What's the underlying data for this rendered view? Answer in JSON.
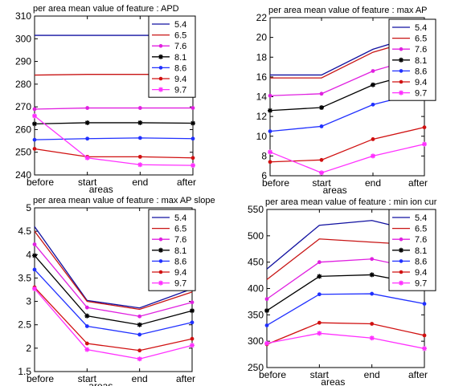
{
  "chart_data": [
    {
      "type": "line",
      "title": "per area mean value of feature : APD",
      "xlabel": "areas",
      "ylabel": "",
      "categories": [
        "before",
        "start",
        "end",
        "after"
      ],
      "ylim": [
        240,
        310
      ],
      "yticks": [
        240,
        250,
        260,
        270,
        280,
        290,
        300,
        310
      ],
      "legend_position": "top-right",
      "series": [
        {
          "name": "5.4",
          "color": "#1010a0",
          "marker": "none",
          "values": [
            301.5,
            301.5,
            301.5,
            301.5
          ]
        },
        {
          "name": "6.5",
          "color": "#c81414",
          "marker": "none",
          "values": [
            284,
            284.3,
            284.3,
            284.3
          ]
        },
        {
          "name": "7.6",
          "color": "#e020e0",
          "marker": "dot",
          "values": [
            269,
            269.5,
            269.5,
            269.5
          ]
        },
        {
          "name": "8.1",
          "color": "#000000",
          "marker": "star",
          "values": [
            262.5,
            263,
            263,
            262.8
          ]
        },
        {
          "name": "8.6",
          "color": "#2030ff",
          "marker": "dot",
          "values": [
            255.5,
            256,
            256.3,
            256
          ]
        },
        {
          "name": "9.4",
          "color": "#d01010",
          "marker": "dot",
          "values": [
            251.5,
            248,
            248,
            247.5
          ]
        },
        {
          "name": "9.7",
          "color": "#ff30ff",
          "marker": "star",
          "values": [
            266,
            247.5,
            244.5,
            244.2
          ]
        }
      ]
    },
    {
      "type": "line",
      "title": "per area mean value of feature : max AP",
      "xlabel": "areas",
      "ylabel": "",
      "categories": [
        "before",
        "start",
        "end",
        "after"
      ],
      "ylim": [
        6,
        22
      ],
      "yticks": [
        6,
        8,
        10,
        12,
        14,
        16,
        18,
        20,
        22
      ],
      "legend_position": "top-right",
      "series": [
        {
          "name": "5.4",
          "color": "#1010a0",
          "marker": "none",
          "values": [
            16.2,
            16.2,
            18.8,
            20.4
          ]
        },
        {
          "name": "6.5",
          "color": "#c81414",
          "marker": "none",
          "values": [
            15.9,
            15.9,
            18.5,
            20.0
          ]
        },
        {
          "name": "7.6",
          "color": "#e020e0",
          "marker": "dot",
          "values": [
            14.1,
            14.3,
            16.6,
            18.1
          ]
        },
        {
          "name": "8.1",
          "color": "#000000",
          "marker": "star",
          "values": [
            12.6,
            12.9,
            15.2,
            16.6
          ]
        },
        {
          "name": "8.6",
          "color": "#2030ff",
          "marker": "dot",
          "values": [
            10.5,
            11.0,
            13.2,
            14.5
          ]
        },
        {
          "name": "9.4",
          "color": "#d01010",
          "marker": "dot",
          "values": [
            7.4,
            7.6,
            9.7,
            10.9
          ]
        },
        {
          "name": "9.7",
          "color": "#ff30ff",
          "marker": "star",
          "values": [
            8.4,
            6.3,
            8.0,
            9.2
          ]
        }
      ]
    },
    {
      "type": "line",
      "title": "per area mean value of feature : max AP slope",
      "xlabel": "areas",
      "ylabel": "",
      "categories": [
        "before",
        "start",
        "end",
        "after"
      ],
      "ylim": [
        1.5,
        5
      ],
      "yticks": [
        1.5,
        2,
        2.5,
        3,
        3.5,
        4,
        4.5,
        5
      ],
      "legend_position": "top-right",
      "series": [
        {
          "name": "5.4",
          "color": "#1010a0",
          "marker": "none",
          "values": [
            4.6,
            3.02,
            2.86,
            3.27
          ]
        },
        {
          "name": "6.5",
          "color": "#c81414",
          "marker": "none",
          "values": [
            4.5,
            3.0,
            2.83,
            3.2
          ]
        },
        {
          "name": "7.6",
          "color": "#e020e0",
          "marker": "dot",
          "values": [
            4.22,
            2.87,
            2.68,
            2.98
          ]
        },
        {
          "name": "8.1",
          "color": "#000000",
          "marker": "star",
          "values": [
            3.98,
            2.69,
            2.5,
            2.8
          ]
        },
        {
          "name": "8.6",
          "color": "#2030ff",
          "marker": "dot",
          "values": [
            3.68,
            2.47,
            2.29,
            2.55
          ]
        },
        {
          "name": "9.4",
          "color": "#d01010",
          "marker": "dot",
          "values": [
            3.3,
            2.1,
            1.95,
            2.2
          ]
        },
        {
          "name": "9.7",
          "color": "#ff30ff",
          "marker": "star",
          "values": [
            3.27,
            1.97,
            1.77,
            2.06
          ]
        }
      ]
    },
    {
      "type": "line",
      "title": "per area mean value of feature : min ion cur",
      "xlabel": "areas",
      "ylabel": "",
      "categories": [
        "before",
        "start",
        "end",
        "after"
      ],
      "ylim": [
        250,
        550
      ],
      "yticks": [
        250,
        300,
        350,
        400,
        450,
        500,
        550
      ],
      "legend_position": "top-right",
      "series": [
        {
          "name": "5.4",
          "color": "#1010a0",
          "marker": "none",
          "values": [
            437,
            520,
            529,
            505
          ]
        },
        {
          "name": "6.5",
          "color": "#c81414",
          "marker": "none",
          "values": [
            417,
            494,
            488,
            482
          ]
        },
        {
          "name": "7.6",
          "color": "#e020e0",
          "marker": "dot",
          "values": [
            380,
            450,
            456,
            435
          ]
        },
        {
          "name": "8.1",
          "color": "#000000",
          "marker": "star",
          "values": [
            358,
            423,
            426,
            407
          ]
        },
        {
          "name": "8.6",
          "color": "#2030ff",
          "marker": "dot",
          "values": [
            330,
            389,
            390,
            371
          ]
        },
        {
          "name": "9.4",
          "color": "#d01010",
          "marker": "dot",
          "values": [
            294,
            335,
            333,
            311
          ]
        },
        {
          "name": "9.7",
          "color": "#ff30ff",
          "marker": "star",
          "values": [
            296,
            315,
            306,
            286
          ]
        }
      ]
    }
  ]
}
